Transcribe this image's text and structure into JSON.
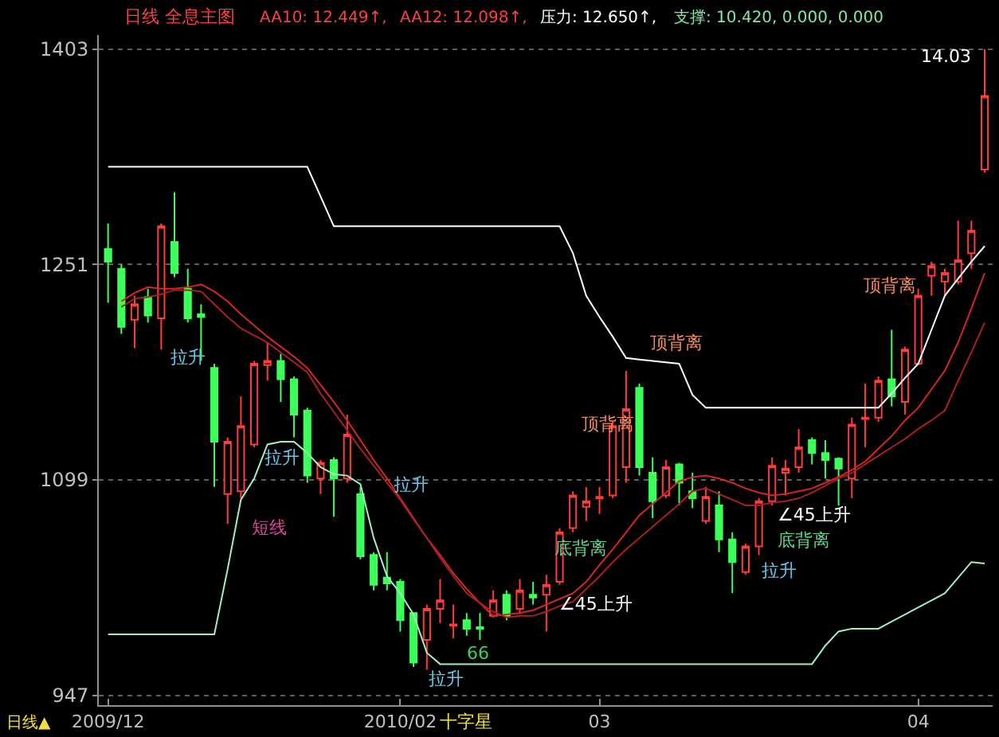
{
  "chart_data": {
    "type": "candlestick",
    "title": "日线 全息主图",
    "xlabel": "日线▲",
    "grid": "y",
    "categories": [
      "2009/12",
      null,
      null,
      null,
      null,
      null,
      null,
      null,
      null,
      null,
      null,
      null,
      null,
      null,
      null,
      null,
      null,
      null,
      null,
      null,
      null,
      null,
      "2010/02",
      null,
      null,
      null,
      null,
      null,
      null,
      null,
      null,
      null,
      null,
      null,
      null,
      null,
      null,
      "03",
      null,
      null,
      null,
      null,
      null,
      null,
      null,
      null,
      null,
      null,
      null,
      null,
      null,
      null,
      null,
      null,
      null,
      null,
      null,
      null,
      null,
      null,
      null,
      "04",
      null,
      null,
      null,
      null,
      null
    ],
    "ohlc": [
      [
        1262,
        1280,
        1224,
        1253
      ],
      [
        1248,
        1251,
        1202,
        1207
      ],
      [
        1212,
        1229,
        1192,
        1223
      ],
      [
        1228,
        1234,
        1210,
        1215
      ],
      [
        1213,
        1280,
        1191,
        1278
      ],
      [
        1267,
        1302,
        1242,
        1245
      ],
      [
        1234,
        1248,
        1210,
        1213
      ],
      [
        1216,
        1223,
        1183,
        1214
      ],
      [
        1178,
        1181,
        1094,
        1126
      ],
      [
        1089,
        1129,
        1068,
        1126
      ],
      [
        1091,
        1158,
        1086,
        1137
      ],
      [
        1124,
        1183,
        1122,
        1181
      ],
      [
        1180,
        1196,
        1169,
        1183
      ],
      [
        1183,
        1188,
        1154,
        1170
      ],
      [
        1170,
        1172,
        1129,
        1145
      ],
      [
        1148,
        1150,
        1097,
        1102
      ],
      [
        1100,
        1113,
        1089,
        1111
      ],
      [
        1113,
        1115,
        1073,
        1100
      ],
      [
        1100,
        1145,
        1097,
        1131
      ],
      [
        1089,
        1094,
        1043,
        1045
      ],
      [
        1046,
        1048,
        1021,
        1025
      ],
      [
        1030,
        1048,
        1021,
        1026
      ],
      [
        1027,
        1029,
        992,
        1000
      ],
      [
        1005,
        1005,
        967,
        970
      ],
      [
        986,
        1011,
        965,
        1008
      ],
      [
        1008,
        1029,
        998,
        1014
      ],
      [
        996,
        1011,
        987,
        997
      ],
      [
        1000,
        1005,
        989,
        994
      ],
      [
        995,
        1005,
        986,
        994
      ],
      [
        1003,
        1021,
        1002,
        1014
      ],
      [
        1018,
        1021,
        1000,
        1003
      ],
      [
        1008,
        1029,
        1005,
        1021
      ],
      [
        1018,
        1027,
        1011,
        1016
      ],
      [
        1018,
        1032,
        992,
        1025
      ],
      [
        1027,
        1065,
        1025,
        1062
      ],
      [
        1065,
        1091,
        1062,
        1088
      ],
      [
        1080,
        1094,
        1070,
        1084
      ],
      [
        1086,
        1094,
        1075,
        1087
      ],
      [
        1088,
        1140,
        1086,
        1137
      ],
      [
        1108,
        1176,
        1097,
        1149
      ],
      [
        1164,
        1167,
        1102,
        1108
      ],
      [
        1104,
        1115,
        1072,
        1084
      ],
      [
        1088,
        1113,
        1086,
        1108
      ],
      [
        1110,
        1111,
        1081,
        1097
      ],
      [
        1091,
        1104,
        1079,
        1086
      ],
      [
        1070,
        1094,
        1068,
        1087
      ],
      [
        1081,
        1091,
        1048,
        1057
      ],
      [
        1057,
        1062,
        1019,
        1041
      ],
      [
        1034,
        1054,
        1032,
        1052
      ],
      [
        1052,
        1086,
        1046,
        1084
      ],
      [
        1084,
        1115,
        1081,
        1109
      ],
      [
        1104,
        1113,
        1088,
        1107
      ],
      [
        1108,
        1135,
        1104,
        1122
      ],
      [
        1127,
        1129,
        1110,
        1118
      ],
      [
        1118,
        1127,
        1100,
        1113
      ],
      [
        1114,
        1115,
        1081,
        1107
      ],
      [
        1100,
        1143,
        1086,
        1138
      ],
      [
        1142,
        1167,
        1122,
        1143
      ],
      [
        1143,
        1172,
        1140,
        1169
      ],
      [
        1170,
        1205,
        1151,
        1158
      ],
      [
        1154,
        1193,
        1145,
        1191
      ],
      [
        1181,
        1234,
        1180,
        1229
      ],
      [
        1243,
        1253,
        1229,
        1250
      ],
      [
        1239,
        1248,
        1229,
        1245
      ],
      [
        1239,
        1282,
        1237,
        1254
      ],
      [
        1259,
        1282,
        1248,
        1275
      ],
      [
        1318,
        1403,
        1316,
        1370
      ]
    ],
    "colors": [
      "#3cff5a",
      "#3cff5a",
      "#ff3c3c",
      "#3cff5a",
      "#ff3c3c",
      "#3cff5a",
      "#3cff5a",
      "#3cff5a",
      "#3cff5a",
      "#ff3c3c",
      "#ff3c3c",
      "#ff3c3c",
      "#ff3c3c",
      "#3cff5a",
      "#3cff5a",
      "#3cff5a",
      "#ff3c3c",
      "#3cff5a",
      "#ff3c3c",
      "#3cff5a",
      "#3cff5a",
      "#3cff5a",
      "#3cff5a",
      "#3cff5a",
      "#ff3c3c",
      "#ff3c3c",
      "#ff3c3c",
      "#3cff5a",
      "#3cff5a",
      "#ff3c3c",
      "#3cff5a",
      "#ff3c3c",
      "#3cff5a",
      "#ff3c3c",
      "#ff3c3c",
      "#ff3c3c",
      "#ff3c3c",
      "#ff3c3c",
      "#ff3c3c",
      "#ff3c3c",
      "#3cff5a",
      "#3cff5a",
      "#ff3c3c",
      "#3cff5a",
      "#3cff5a",
      "#ff3c3c",
      "#3cff5a",
      "#3cff5a",
      "#ff3c3c",
      "#ff3c3c",
      "#ff3c3c",
      "#ff3c3c",
      "#ff3c3c",
      "#3cff5a",
      "#3cff5a",
      "#3cff5a",
      "#ff3c3c",
      "#ff3c3c",
      "#ff3c3c",
      "#3cff5a",
      "#ff3c3c",
      "#ff3c3c",
      "#ff3c3c",
      "#ff3c3c",
      "#ff3c3c",
      "#ff3c3c",
      "#ff3c3c"
    ],
    "ylim": [
      940,
      1413
    ],
    "yticks": [
      947,
      1099,
      1251,
      1403
    ],
    "series": [
      {
        "type": "line",
        "color": "#ffffff",
        "values": [
          1320,
          1320,
          1320,
          1320,
          1320,
          1320,
          1320,
          1320,
          1320,
          1320,
          1320,
          1320,
          1320,
          1320,
          1320,
          1320,
          1299,
          1278,
          1278,
          1278,
          1278,
          1278,
          1278,
          1278,
          1278,
          1278,
          1278,
          1278,
          1278,
          1278,
          1278,
          1278,
          1278,
          1278,
          1278,
          1259,
          1229,
          1214,
          1200,
          1185,
          1184,
          1183,
          1182,
          1181,
          1159,
          1150,
          1150,
          1150,
          1150,
          1150,
          1150,
          1150,
          1150,
          1150,
          1150,
          1150,
          1150,
          1150,
          1150,
          1160,
          1171,
          1181,
          1205,
          1229,
          1241,
          1253,
          1264
        ]
      },
      {
        "type": "line",
        "color": "#a0f0c0",
        "values": [
          990,
          990,
          990,
          990,
          990,
          990,
          990,
          990,
          990,
          1036,
          1085,
          1100,
          1124,
          1126,
          1126,
          1118,
          1108,
          1103,
          1102,
          1096,
          1058,
          1031,
          1019,
          1004,
          977,
          969,
          969,
          969,
          969,
          969,
          969,
          969,
          969,
          969,
          969,
          969,
          969,
          969,
          969,
          969,
          969,
          969,
          969,
          969,
          969,
          969,
          969,
          969,
          969,
          969,
          969,
          969,
          969,
          969,
          982,
          992,
          994,
          994,
          994,
          999,
          1004,
          1009,
          1014,
          1019,
          1030,
          1041,
          1040
        ]
      },
      {
        "type": "line",
        "color": "#d02828",
        "values": [
          null,
          1225,
          1231,
          1235,
          1234,
          1234,
          1235,
          1237,
          1232,
          1225,
          1216,
          1208,
          1200,
          1193,
          1186,
          1178,
          1166,
          1154,
          1141,
          1127,
          1113,
          1100,
          1086,
          1072,
          1058,
          1046,
          1033,
          1022,
          1012,
          1003,
          1004,
          1005,
          1007,
          1011,
          1015,
          1019,
          1027,
          1039,
          1050,
          1062,
          1074,
          1082,
          1090,
          1098,
          1101,
          1102,
          1100,
          1097,
          1093,
          1090,
          1088,
          1089,
          1091,
          1093,
          1097,
          1101,
          1106,
          1112,
          1121,
          1130,
          1141,
          1150,
          1163,
          1176,
          1196,
          1220,
          1245
        ]
      },
      {
        "type": "line",
        "color": "#a82020",
        "values": [
          null,
          1221,
          1227,
          1228,
          1230,
          1233,
          1233,
          1232,
          1223,
          1214,
          1206,
          1201,
          1196,
          1189,
          1182,
          1175,
          1160,
          1147,
          1134,
          1121,
          1109,
          1097,
          1085,
          1071,
          1058,
          1044,
          1031,
          1019,
          1012,
          1006,
          1002,
          1003,
          1003,
          1006,
          1010,
          1013,
          1022,
          1031,
          1041,
          1050,
          1058,
          1066,
          1074,
          1082,
          1091,
          1093,
          1089,
          1085,
          1081,
          1081,
          1083,
          1084,
          1086,
          1090,
          1095,
          1100,
          1104,
          1110,
          1116,
          1122,
          1128,
          1135,
          1141,
          1148,
          1169,
          1189,
          1210
        ]
      }
    ],
    "annotations": [
      "AA10: 12.449↑,",
      "AA12: 12.098↑,",
      "压力: 12.650↑,",
      "支撑: 10.420, 0.000, 0.000",
      "14.03",
      "拉升",
      "拉升",
      "拉升",
      "短线",
      "拉升",
      "66",
      "十字星",
      "顶背离",
      "顶背离",
      "底背离",
      "∠45上升",
      "∠45上升",
      "底背离",
      "拉升",
      "顶背离"
    ]
  }
}
